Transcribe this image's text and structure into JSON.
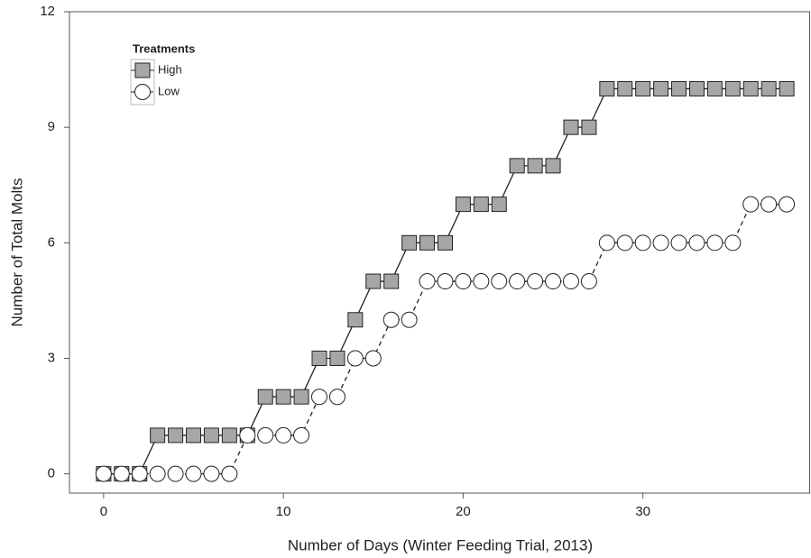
{
  "chart_data": {
    "type": "line",
    "x_label": "Number of Days (Winter Feeding Trial, 2013)",
    "y_label": "Number of Total Molts",
    "legend_title": "Treatments",
    "legend_position": "upper left",
    "x": [
      0,
      1,
      2,
      3,
      4,
      5,
      6,
      7,
      8,
      9,
      10,
      11,
      12,
      13,
      14,
      15,
      16,
      17,
      18,
      19,
      20,
      21,
      22,
      23,
      24,
      25,
      26,
      27,
      28,
      29,
      30,
      31,
      32,
      33,
      34,
      35,
      36,
      37,
      38
    ],
    "series": [
      {
        "name": "High",
        "color": "#a6a6a6",
        "marker": "square",
        "line_style": "solid",
        "values": [
          0,
          0,
          0,
          1,
          1,
          1,
          1,
          1,
          1,
          2,
          2,
          2,
          3,
          3,
          4,
          5,
          5,
          6,
          6,
          6,
          7,
          7,
          7,
          8,
          8,
          8,
          9,
          9,
          10,
          10,
          10,
          10,
          10,
          10,
          10,
          10,
          10,
          10,
          10
        ]
      },
      {
        "name": "Low",
        "color": "#ffffff",
        "marker": "circle",
        "line_style": "dashed",
        "values": [
          0,
          0,
          0,
          0,
          0,
          0,
          0,
          0,
          1,
          1,
          1,
          1,
          2,
          2,
          3,
          3,
          4,
          4,
          5,
          5,
          5,
          5,
          5,
          5,
          5,
          5,
          5,
          5,
          6,
          6,
          6,
          6,
          6,
          6,
          6,
          6,
          7,
          7,
          7
        ]
      }
    ],
    "xlim": [
      -1.9,
      39.3
    ],
    "xticks": [
      0,
      10,
      20,
      30
    ],
    "ylim": [
      -0.5,
      12
    ],
    "yticks": [
      0,
      3,
      6,
      9,
      12
    ],
    "grid": false
  }
}
